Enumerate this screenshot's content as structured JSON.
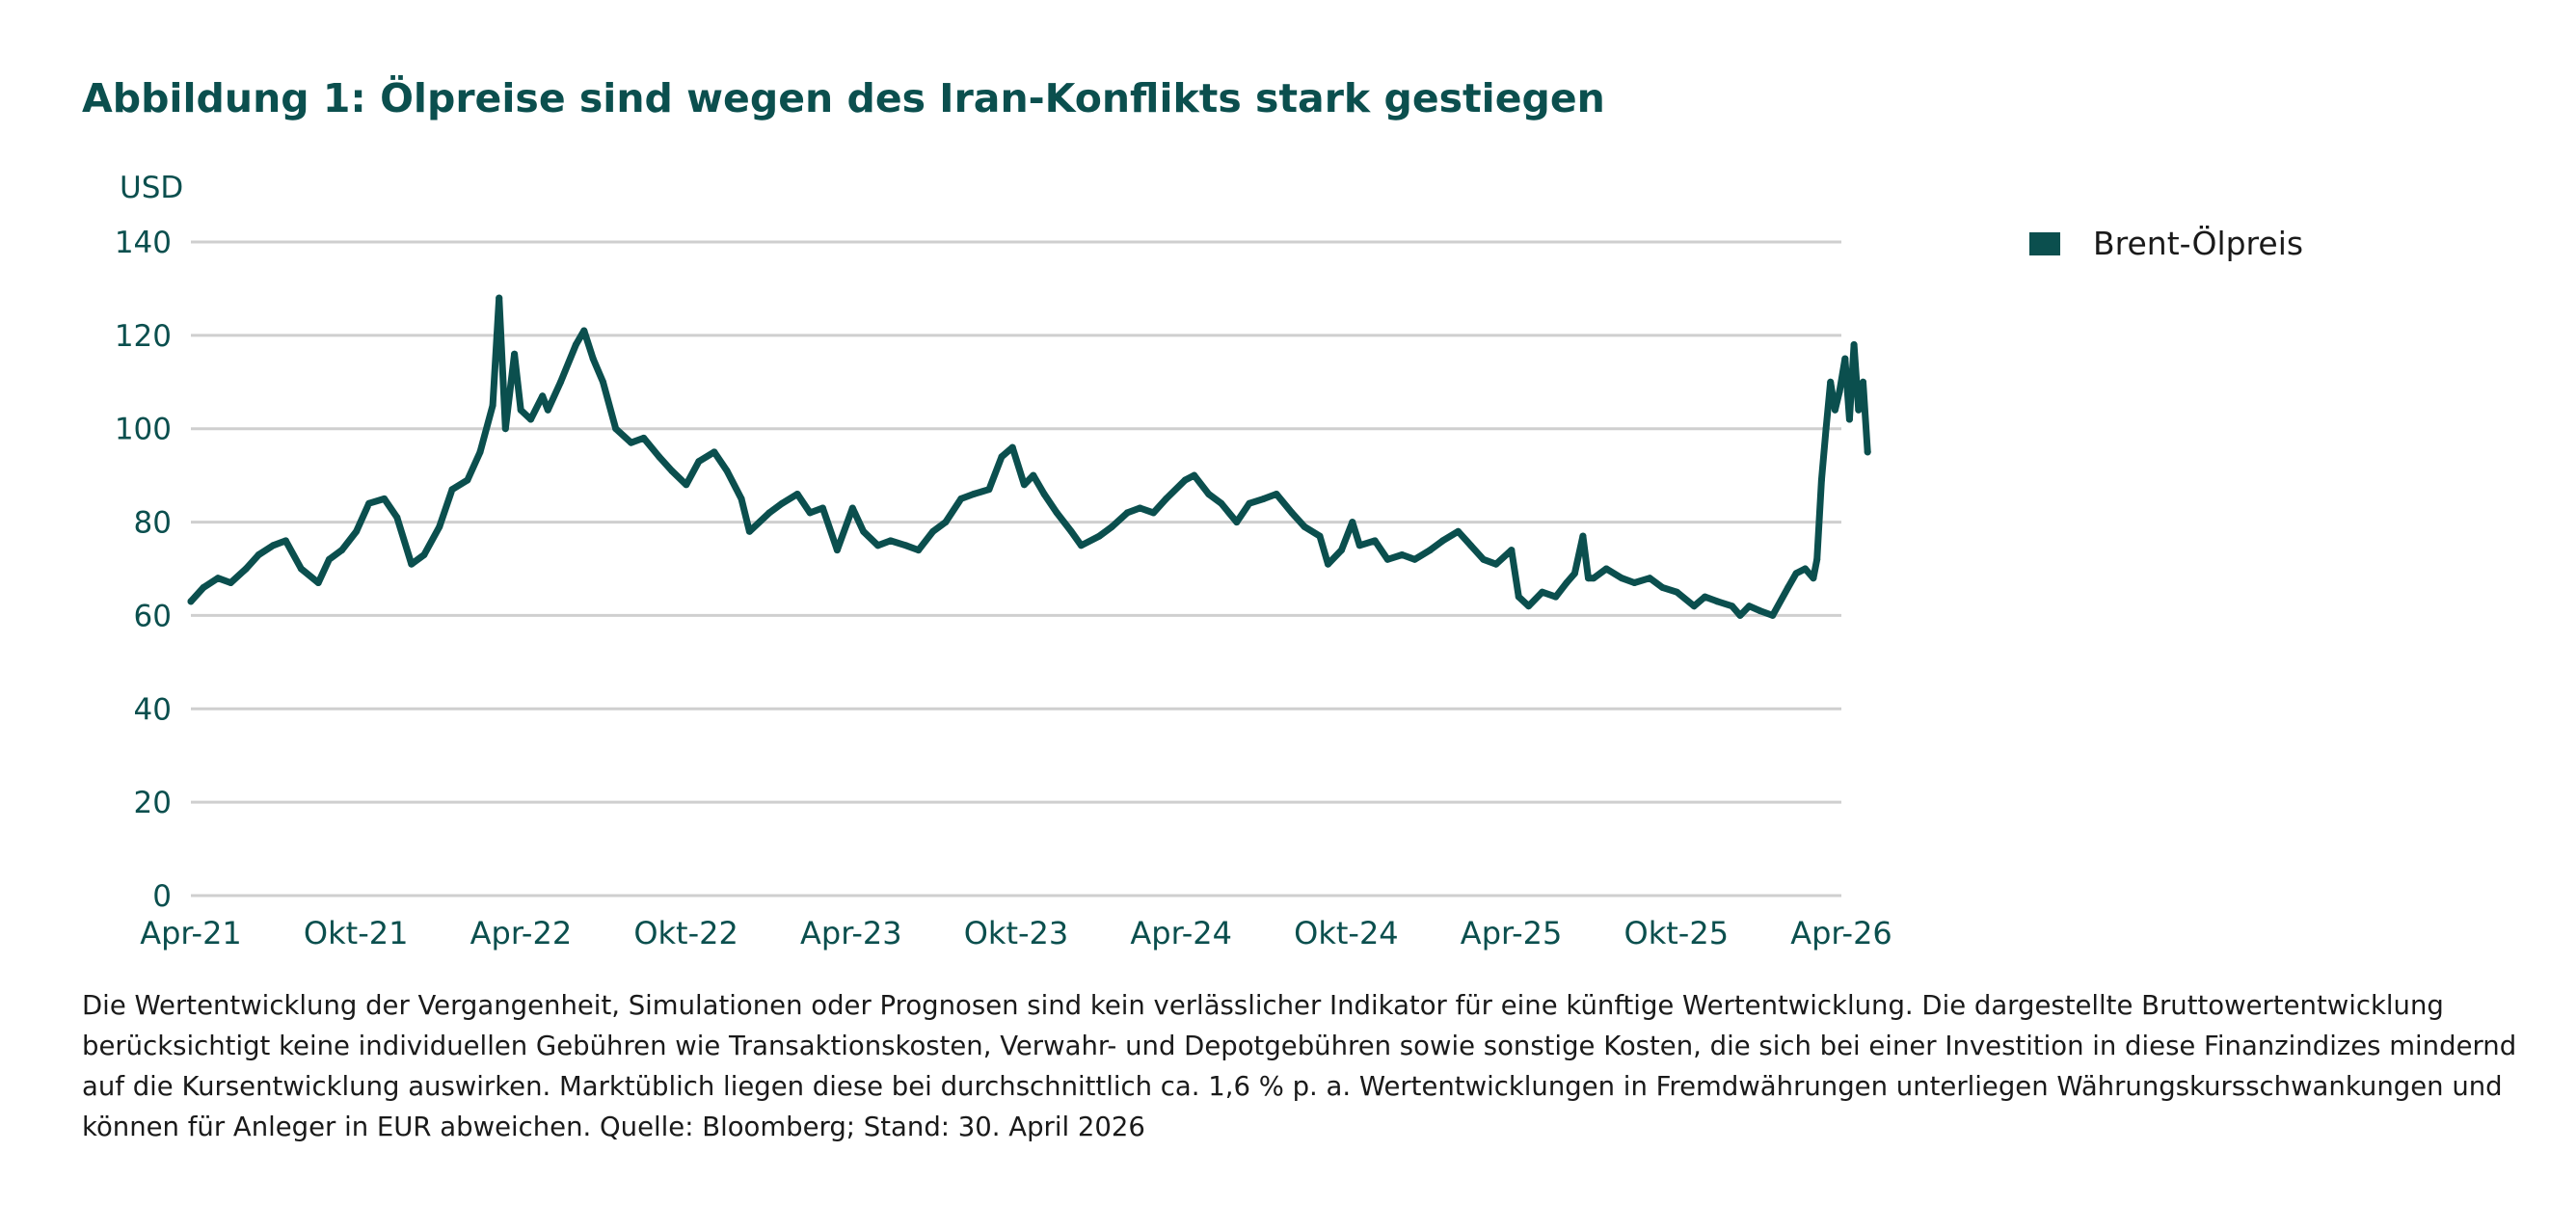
{
  "chart_data": {
    "type": "line",
    "title": "Abbildung 1: Ölpreise sind wegen des Iran-Konflikts stark gestiegen",
    "ylabel": "USD",
    "xlabel": "",
    "ylim": [
      0,
      140
    ],
    "yticks": [
      0,
      20,
      40,
      60,
      80,
      100,
      120,
      140
    ],
    "xticks": [
      "Apr-21",
      "Okt-21",
      "Apr-22",
      "Okt-22",
      "Apr-23",
      "Okt-23",
      "Apr-24",
      "Okt-24",
      "Apr-25",
      "Okt-25",
      "Apr-26"
    ],
    "grid": true,
    "legend_position": "top-right",
    "series_color": "#0b4f4e",
    "series": [
      {
        "name": "Brent-Ölpreis",
        "x": [
          "2021-04-01",
          "2021-04-15",
          "2021-05-01",
          "2021-05-15",
          "2021-06-01",
          "2021-06-15",
          "2021-07-01",
          "2021-07-15",
          "2021-08-01",
          "2021-08-20",
          "2021-09-01",
          "2021-09-15",
          "2021-10-01",
          "2021-10-15",
          "2021-11-01",
          "2021-11-15",
          "2021-12-01",
          "2021-12-15",
          "2022-01-01",
          "2022-01-15",
          "2022-02-01",
          "2022-02-15",
          "2022-03-01",
          "2022-03-08",
          "2022-03-15",
          "2022-03-25",
          "2022-04-01",
          "2022-04-12",
          "2022-04-25",
          "2022-05-01",
          "2022-05-15",
          "2022-06-01",
          "2022-06-10",
          "2022-06-20",
          "2022-07-01",
          "2022-07-15",
          "2022-08-01",
          "2022-08-15",
          "2022-09-01",
          "2022-09-15",
          "2022-10-01",
          "2022-10-15",
          "2022-11-01",
          "2022-11-15",
          "2022-12-01",
          "2022-12-10",
          "2023-01-01",
          "2023-01-15",
          "2023-02-01",
          "2023-02-15",
          "2023-03-01",
          "2023-03-17",
          "2023-04-03",
          "2023-04-15",
          "2023-05-01",
          "2023-05-15",
          "2023-06-01",
          "2023-06-15",
          "2023-07-01",
          "2023-07-15",
          "2023-08-01",
          "2023-08-15",
          "2023-09-01",
          "2023-09-15",
          "2023-09-27",
          "2023-10-10",
          "2023-10-20",
          "2023-11-01",
          "2023-11-15",
          "2023-12-01",
          "2023-12-12",
          "2024-01-01",
          "2024-01-15",
          "2024-02-01",
          "2024-02-15",
          "2024-03-01",
          "2024-03-15",
          "2024-04-05",
          "2024-04-15",
          "2024-05-01",
          "2024-05-15",
          "2024-06-01",
          "2024-06-15",
          "2024-07-01",
          "2024-07-15",
          "2024-08-01",
          "2024-08-15",
          "2024-09-01",
          "2024-09-10",
          "2024-09-25",
          "2024-10-07",
          "2024-10-15",
          "2024-11-01",
          "2024-11-15",
          "2024-12-01",
          "2024-12-15",
          "2025-01-01",
          "2025-01-15",
          "2025-02-01",
          "2025-02-15",
          "2025-03-01",
          "2025-03-15",
          "2025-04-01",
          "2025-04-09",
          "2025-04-20",
          "2025-05-05",
          "2025-05-20",
          "2025-06-01",
          "2025-06-10",
          "2025-06-19",
          "2025-06-25",
          "2025-07-01",
          "2025-07-15",
          "2025-08-01",
          "2025-08-15",
          "2025-09-01",
          "2025-09-15",
          "2025-10-01",
          "2025-10-20",
          "2025-11-01",
          "2025-11-15",
          "2025-12-01",
          "2025-12-10",
          "2025-12-20",
          "2026-01-01",
          "2026-01-15",
          "2026-02-01",
          "2026-02-10",
          "2026-02-20",
          "2026-03-01",
          "2026-03-05",
          "2026-03-10",
          "2026-03-15",
          "2026-03-20",
          "2026-03-25",
          "2026-03-30",
          "2026-04-05",
          "2026-04-10",
          "2026-04-15",
          "2026-04-20",
          "2026-04-25",
          "2026-04-30"
        ],
        "values": [
          63,
          66,
          68,
          67,
          70,
          73,
          75,
          76,
          70,
          67,
          72,
          74,
          78,
          84,
          85,
          81,
          71,
          73,
          79,
          87,
          89,
          95,
          105,
          128,
          100,
          116,
          104,
          102,
          107,
          104,
          110,
          118,
          121,
          115,
          110,
          100,
          97,
          98,
          94,
          91,
          88,
          93,
          95,
          91,
          85,
          78,
          82,
          84,
          86,
          82,
          83,
          74,
          83,
          78,
          75,
          76,
          75,
          74,
          78,
          80,
          85,
          86,
          87,
          94,
          96,
          88,
          90,
          86,
          82,
          78,
          75,
          77,
          79,
          82,
          83,
          82,
          85,
          89,
          90,
          86,
          84,
          80,
          84,
          85,
          86,
          82,
          79,
          77,
          71,
          74,
          80,
          75,
          76,
          72,
          73,
          72,
          74,
          76,
          78,
          75,
          72,
          71,
          74,
          64,
          62,
          65,
          64,
          67,
          69,
          77,
          68,
          68,
          70,
          68,
          67,
          68,
          66,
          65,
          62,
          64,
          63,
          62,
          60,
          62,
          61,
          60,
          66,
          69,
          70,
          68,
          72,
          89,
          100,
          110,
          104,
          108,
          115,
          102,
          118,
          104,
          110,
          95
        ]
      }
    ]
  },
  "footnote": "Die Wertentwicklung der Vergangenheit, Simulationen oder Prognosen sind kein verlässlicher Indikator für eine künftige Wertentwicklung. Die dargestellte Bruttowertentwicklung berücksichtigt keine individuellen Gebühren wie Transaktionskosten, Verwahr- und Depotgebühren sowie sonstige Kosten, die sich bei einer Investition in diese Finanzindizes mindernd auf die Kursentwicklung auswirken. Marktüblich liegen diese bei durchschnittlich ca. 1,6 % p. a. Wertentwicklungen in Fremdwährungen unterliegen Währungskursschwankungen und können für Anleger in EUR abweichen. Quelle: Bloomberg; Stand: 30. April 2026"
}
